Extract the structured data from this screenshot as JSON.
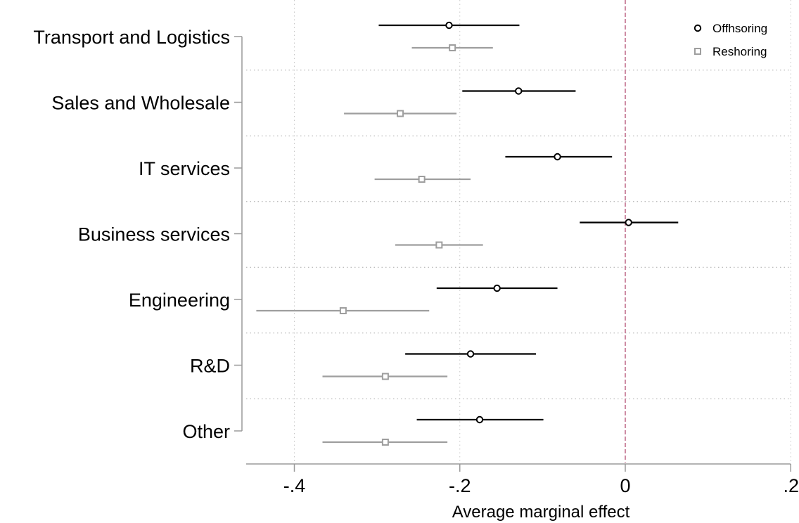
{
  "chart_data": {
    "type": "scatter",
    "subtype": "coefficient-plot-with-confidence-intervals",
    "title": "",
    "xlabel": "Average marginal effect",
    "ylabel": "",
    "xlim": [
      -0.46,
      0.2
    ],
    "xticks": [
      -0.4,
      -0.2,
      0,
      0.2
    ],
    "xtick_labels": [
      "-.4",
      "-.2",
      "0",
      ".2"
    ],
    "reference_line": {
      "x": 0,
      "color": "#c2708e",
      "style": "dashed"
    },
    "grid": "dotted vertical at x ticks, dotted horizontal between categories",
    "legend_position": "top-right",
    "categories": [
      "Transport and Logistics",
      "Sales and Wholesale",
      "IT services",
      "Business services",
      "Engineering",
      "R&D",
      "Other"
    ],
    "series": [
      {
        "name": "Offhsoring",
        "marker": "circle",
        "color": "#000000",
        "estimates": [
          -0.213,
          -0.129,
          -0.082,
          0.004,
          -0.155,
          -0.187,
          -0.176
        ],
        "ci_low": [
          -0.298,
          -0.197,
          -0.145,
          -0.055,
          -0.228,
          -0.266,
          -0.252
        ],
        "ci_high": [
          -0.128,
          -0.06,
          -0.016,
          0.064,
          -0.082,
          -0.108,
          -0.099
        ]
      },
      {
        "name": "Reshoring",
        "marker": "square",
        "color": "#9e9e9e",
        "estimates": [
          -0.209,
          -0.272,
          -0.246,
          -0.225,
          -0.341,
          -0.29,
          -0.29
        ],
        "ci_low": [
          -0.258,
          -0.34,
          -0.303,
          -0.278,
          -0.446,
          -0.366,
          -0.366
        ],
        "ci_high": [
          -0.16,
          -0.204,
          -0.187,
          -0.172,
          -0.237,
          -0.215,
          -0.215
        ]
      }
    ]
  }
}
